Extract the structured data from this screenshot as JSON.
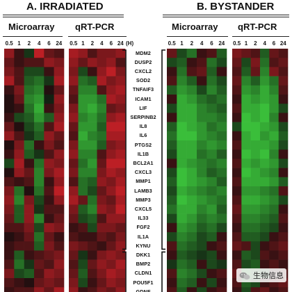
{
  "panels": {
    "irradiated": {
      "title": "A. IRRADIATED"
    },
    "bystander": {
      "title": "B. BYSTANDER"
    }
  },
  "methods": {
    "microarray": "Microarray",
    "qrtpcr": "qRT-PCR"
  },
  "timepoints": [
    "0.5",
    "1",
    "2",
    "4",
    "6",
    "24"
  ],
  "time_unit": "(H)",
  "genes": [
    "MDM2",
    "DUSP2",
    "CXCL2",
    "SOD2",
    "TNFAIF3",
    "ICAM1",
    "LIF",
    "SERPINB2",
    "IL8",
    "IL6",
    "PTGS2",
    "IL1B",
    "BCL2A1",
    "CXCL3",
    "MMP1",
    "LAMB3",
    "MMP3",
    "CXCL5",
    "IL33",
    "FGF2",
    "IL1A",
    "KYNU",
    "DKK1",
    "BMP2",
    "CLDN1",
    "POU5F1",
    "GDNF"
  ],
  "gene_groups": [
    {
      "from": 0,
      "to": 21
    },
    {
      "from": 22,
      "to": 26
    }
  ],
  "colors": {
    "up": "#e8232b",
    "down": "#3fd23f",
    "zero": "#0d0d0d",
    "text": "#111111"
  },
  "chart_data": {
    "type": "heatmap",
    "panels": [
      "A. IRRADIATED",
      "B. BYSTANDER"
    ],
    "methods": [
      "Microarray",
      "qRT-PCR"
    ],
    "columns": [
      "0.5",
      "1",
      "2",
      "4",
      "6",
      "24"
    ],
    "rows": [
      "MDM2",
      "DUSP2",
      "CXCL2",
      "SOD2",
      "TNFAIF3",
      "ICAM1",
      "LIF",
      "SERPINB2",
      "IL8",
      "IL6",
      "PTGS2",
      "IL1B",
      "BCL2A1",
      "CXCL3",
      "MMP1",
      "LAMB3",
      "MMP3",
      "CXCL5",
      "IL33",
      "FGF2",
      "IL1A",
      "KYNU",
      "DKK1",
      "BMP2",
      "CLDN1",
      "POU5F1",
      "GDNF"
    ],
    "matrices": {
      "irradiated_microarray": [
        [
          0.6,
          0.2,
          -0.2,
          0.8,
          0.4,
          0.3
        ],
        [
          0.4,
          0.2,
          0.3,
          0.3,
          0.6,
          0.5
        ],
        [
          0.5,
          0.3,
          -0.3,
          -0.3,
          0.2,
          0.6
        ],
        [
          0.7,
          0.3,
          -0.4,
          -0.5,
          -0.2,
          0.7
        ],
        [
          0.2,
          0.5,
          -0.5,
          -0.6,
          0.1,
          0.4
        ],
        [
          0.1,
          0.4,
          -0.6,
          -0.7,
          -0.1,
          0.6
        ],
        [
          0.1,
          0.2,
          -0.5,
          -0.8,
          0.2,
          0.5
        ],
        [
          0.2,
          -0.3,
          -0.4,
          -0.7,
          -0.4,
          0.6
        ],
        [
          0.4,
          0.1,
          -0.3,
          -0.5,
          0.3,
          0.7
        ],
        [
          0.6,
          0.3,
          -0.2,
          -0.4,
          0.6,
          0.4
        ],
        [
          0.1,
          0.5,
          -0.5,
          0.2,
          0.5,
          0.3
        ],
        [
          0.2,
          0.6,
          -0.4,
          -0.2,
          0.3,
          0.6
        ],
        [
          -0.3,
          0.7,
          0.2,
          -0.5,
          0.6,
          0.5
        ],
        [
          0.1,
          0.6,
          0.4,
          -0.6,
          0.5,
          0.7
        ],
        [
          0.3,
          0.2,
          0.3,
          -0.6,
          0.2,
          0.6
        ],
        [
          0.5,
          -0.5,
          0.1,
          -0.5,
          0.3,
          0.8
        ],
        [
          0.6,
          -0.6,
          0.5,
          -0.3,
          0.2,
          0.6
        ],
        [
          0.5,
          -0.4,
          0.6,
          -0.2,
          0.3,
          0.3
        ],
        [
          0.4,
          -0.4,
          0.6,
          -0.6,
          0.2,
          0.4
        ],
        [
          0.3,
          0.3,
          0.5,
          -0.3,
          0.6,
          0.5
        ],
        [
          0.1,
          0.2,
          0.4,
          -0.5,
          0.4,
          0.2
        ],
        [
          0.2,
          0.3,
          0.3,
          -0.4,
          0.5,
          0.3
        ],
        [
          0.2,
          -0.4,
          0.2,
          0.3,
          0.4,
          0.5
        ],
        [
          0.3,
          -0.5,
          -0.2,
          0.4,
          0.3,
          0.6
        ],
        [
          0.5,
          -0.3,
          -0.4,
          0.3,
          0.6,
          0.5
        ],
        [
          0.3,
          0.2,
          0.1,
          0.4,
          0.5,
          0.4
        ],
        [
          0.2,
          0.3,
          0.3,
          0.6,
          0.4,
          0.7
        ]
      ],
      "irradiated_qrtpcr": [
        [
          0.7,
          0.6,
          0.3,
          0.5,
          0.5,
          0.6
        ],
        [
          0.6,
          0.4,
          0.6,
          0.5,
          0.6,
          0.3
        ],
        [
          0.5,
          -0.3,
          0.2,
          0.6,
          0.8,
          0.5
        ],
        [
          0.6,
          -0.5,
          -0.4,
          0.7,
          0.5,
          0.6
        ],
        [
          0.4,
          -0.6,
          -0.6,
          0.3,
          0.6,
          0.7
        ],
        [
          0.3,
          -0.7,
          -0.7,
          -0.5,
          0.7,
          0.6
        ],
        [
          0.5,
          -0.7,
          -0.8,
          -0.6,
          0.4,
          0.5
        ],
        [
          0.6,
          -0.6,
          -0.7,
          -0.5,
          0.6,
          0.7
        ],
        [
          0.4,
          -0.7,
          -0.7,
          -0.4,
          0.8,
          0.8
        ],
        [
          0.3,
          -0.8,
          -0.6,
          -0.5,
          0.7,
          0.7
        ],
        [
          0.5,
          -0.7,
          -0.7,
          -0.4,
          0.5,
          0.6
        ],
        [
          0.6,
          -0.6,
          -0.6,
          0.3,
          0.6,
          0.7
        ],
        [
          0.4,
          -0.5,
          -0.7,
          0.4,
          0.8,
          0.8
        ],
        [
          0.5,
          -0.6,
          -0.6,
          0.5,
          0.7,
          0.6
        ],
        [
          0.3,
          -0.5,
          -0.4,
          0.6,
          0.5,
          0.7
        ],
        [
          0.6,
          -0.5,
          -0.3,
          0.4,
          0.6,
          0.8
        ],
        [
          0.7,
          0.4,
          -0.5,
          0.5,
          0.4,
          0.7
        ],
        [
          0.5,
          -0.4,
          -0.6,
          0.6,
          0.5,
          0.8
        ],
        [
          0.4,
          -0.3,
          -0.4,
          0.3,
          0.6,
          0.6
        ],
        [
          0.2,
          0.3,
          -0.3,
          0.5,
          0.5,
          0.4
        ],
        [
          0.3,
          0.2,
          0.2,
          0.4,
          0.3,
          0.5
        ],
        [
          0.5,
          0.4,
          0.3,
          0.2,
          0.4,
          0.6
        ],
        [
          0.4,
          -0.2,
          0.2,
          0.5,
          0.6,
          0.5
        ],
        [
          0.3,
          -0.3,
          0.4,
          0.6,
          0.5,
          0.7
        ],
        [
          0.4,
          -0.4,
          0.3,
          0.5,
          0.7,
          0.6
        ],
        [
          0.5,
          -0.3,
          0.2,
          0.4,
          0.6,
          0.5
        ],
        [
          0.6,
          0.2,
          0.3,
          0.5,
          0.4,
          0.6
        ]
      ],
      "bystander_microarray": [
        [
          0.4,
          -0.3,
          -0.5,
          0.2,
          0.3,
          -0.4
        ],
        [
          -0.3,
          -0.4,
          0.2,
          0.3,
          -0.5,
          -0.3
        ],
        [
          0.2,
          -0.5,
          0.3,
          0.4,
          -0.4,
          0.2
        ],
        [
          0.3,
          -0.6,
          -0.4,
          0.2,
          -0.5,
          -0.3
        ],
        [
          -0.4,
          -0.7,
          -0.6,
          -0.3,
          -0.6,
          -0.4
        ],
        [
          0.2,
          -0.8,
          -0.7,
          -0.5,
          -0.4,
          -0.5
        ],
        [
          -0.3,
          -0.8,
          -0.8,
          -0.6,
          -0.5,
          -0.4
        ],
        [
          0.2,
          -0.8,
          -0.8,
          -0.6,
          -0.6,
          -0.5
        ],
        [
          -0.4,
          -0.9,
          -0.8,
          -0.7,
          -0.5,
          -0.6
        ],
        [
          -0.5,
          -0.9,
          -0.9,
          -0.7,
          -0.6,
          -0.5
        ],
        [
          -0.4,
          -0.8,
          -0.8,
          -0.6,
          -0.7,
          -0.6
        ],
        [
          -0.3,
          -0.8,
          -0.8,
          -0.5,
          -0.6,
          -0.4
        ],
        [
          0.2,
          -0.8,
          -0.7,
          -0.6,
          -0.5,
          -0.6
        ],
        [
          -0.3,
          -0.9,
          -0.8,
          -0.6,
          -0.4,
          -0.5
        ],
        [
          -0.4,
          -0.9,
          -0.8,
          -0.7,
          -0.6,
          -0.4
        ],
        [
          -0.3,
          -0.8,
          -0.7,
          -0.6,
          -0.5,
          -0.6
        ],
        [
          -0.4,
          -0.9,
          -0.8,
          -0.7,
          -0.6,
          -0.5
        ],
        [
          -0.5,
          -0.8,
          -0.8,
          -0.6,
          -0.7,
          -0.4
        ],
        [
          -0.3,
          -0.8,
          -0.7,
          -0.5,
          -0.6,
          -0.5
        ],
        [
          0.2,
          -0.7,
          -0.6,
          -0.4,
          -0.5,
          -0.3
        ],
        [
          -0.3,
          -0.6,
          -0.5,
          -0.3,
          -0.4,
          0.2
        ],
        [
          0.3,
          -0.5,
          -0.4,
          -0.3,
          0.2,
          0.3
        ],
        [
          0.2,
          -0.4,
          -0.3,
          -0.2,
          -0.3,
          0.2
        ],
        [
          -0.2,
          -0.5,
          -0.4,
          0.2,
          -0.3,
          -0.2
        ],
        [
          0.3,
          -0.6,
          -0.5,
          -0.3,
          0.2,
          0.3
        ],
        [
          0.2,
          -0.5,
          -0.4,
          0.2,
          -0.3,
          0.2
        ],
        [
          0.3,
          -0.4,
          0.2,
          -0.3,
          0.2,
          0.3
        ]
      ],
      "bystander_qrtpcr": [
        [
          0.5,
          0.4,
          0.3,
          -0.4,
          0.4,
          0.3
        ],
        [
          0.4,
          -0.3,
          0.5,
          -0.5,
          0.3,
          0.4
        ],
        [
          0.3,
          -0.4,
          0.4,
          -0.6,
          0.5,
          0.3
        ],
        [
          0.4,
          -0.6,
          -0.4,
          -0.7,
          -0.5,
          0.4
        ],
        [
          0.3,
          -0.7,
          -0.6,
          -0.8,
          -0.6,
          0.3
        ],
        [
          0.2,
          -0.8,
          -0.7,
          -0.8,
          -0.7,
          0.2
        ],
        [
          0.3,
          -0.8,
          -0.8,
          -0.9,
          -0.7,
          -0.3
        ],
        [
          0.2,
          -0.9,
          -0.8,
          -0.9,
          -0.6,
          0.2
        ],
        [
          -0.3,
          -0.9,
          -0.9,
          -0.8,
          -0.7,
          -0.3
        ],
        [
          0.2,
          -0.8,
          -0.9,
          -0.7,
          -0.8,
          -0.4
        ],
        [
          0.3,
          -0.8,
          -0.8,
          -0.8,
          -0.7,
          -0.3
        ],
        [
          0.2,
          -0.9,
          -0.8,
          -0.9,
          -0.6,
          0.2
        ],
        [
          0.3,
          -0.8,
          -0.7,
          -0.8,
          -0.7,
          -0.3
        ],
        [
          0.2,
          -0.9,
          -0.8,
          -0.7,
          -0.6,
          0.2
        ],
        [
          0.3,
          -0.8,
          -0.8,
          -0.8,
          -0.7,
          -0.4
        ],
        [
          0.2,
          -0.7,
          -0.7,
          -0.6,
          -0.5,
          0.3
        ],
        [
          0.3,
          -0.8,
          -0.8,
          -0.7,
          -0.6,
          -0.3
        ],
        [
          0.4,
          -0.7,
          -0.7,
          -0.6,
          -0.5,
          0.2
        ],
        [
          0.3,
          -0.6,
          -0.6,
          -0.5,
          -0.4,
          0.3
        ],
        [
          0.2,
          -0.5,
          -0.5,
          -0.4,
          -0.3,
          0.2
        ],
        [
          0.3,
          -0.4,
          -0.4,
          -0.3,
          0.2,
          0.3
        ],
        [
          0.4,
          0.3,
          -0.3,
          0.2,
          0.3,
          0.4
        ],
        [
          0.2,
          -0.4,
          -0.3,
          0.3,
          0.2,
          0.3
        ],
        [
          0.3,
          -0.3,
          -0.4,
          0.2,
          0.3,
          0.2
        ],
        [
          0.4,
          -0.5,
          -0.4,
          -0.3,
          0.2,
          0.3
        ],
        [
          0.3,
          -0.4,
          -0.3,
          0.2,
          0.3,
          0.4
        ],
        [
          0.2,
          -0.3,
          0.3,
          0.4,
          0.2,
          0.3
        ]
      ]
    }
  },
  "watermark": {
    "text": "生物信息"
  }
}
